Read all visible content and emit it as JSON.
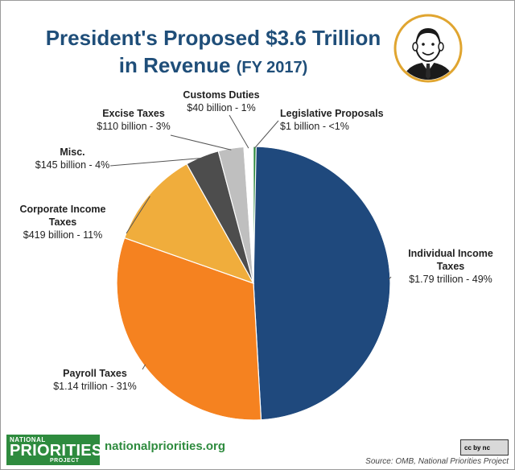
{
  "header": {
    "title_line1": "President's Proposed $3.6 Trillion",
    "title_line2": "in Revenue",
    "title_suffix": "(FY 2017)"
  },
  "chart_data": {
    "type": "pie",
    "title": "President's Proposed $3.6 Trillion in Revenue (FY 2017)",
    "slices": [
      {
        "label": "Individual Income Taxes",
        "value_text": "$1.79 trillion - 49%",
        "value_billion": 1790,
        "percent": 49,
        "color": "#1f497d"
      },
      {
        "label": "Payroll Taxes",
        "value_text": "$1.14 trillion - 31%",
        "value_billion": 1140,
        "percent": 31,
        "color": "#f58220"
      },
      {
        "label": "Corporate Income Taxes",
        "value_text": "$419 billion - 11%",
        "value_billion": 419,
        "percent": 11,
        "color": "#f0ad3c"
      },
      {
        "label": "Misc.",
        "value_text": "$145 billion - 4%",
        "value_billion": 145,
        "percent": 4,
        "color": "#4d4d4d"
      },
      {
        "label": "Excise Taxes",
        "value_text": "$110 billion - 3%",
        "value_billion": 110,
        "percent": 3,
        "color": "#bfbfbf"
      },
      {
        "label": "Customs Duties",
        "value_text": "$40 billion - 1%",
        "value_billion": 40,
        "percent": 1,
        "color": "#ffffff"
      },
      {
        "label": "Legislative Proposals",
        "value_text": "$1 billion - <1%",
        "value_billion": 1,
        "percent": 0,
        "color": "#2e8b3e"
      }
    ]
  },
  "footer": {
    "logo_top": "NATIONAL",
    "logo_mid": "PRIORITIES",
    "logo_bot": "PROJECT",
    "url": "nationalpriorities.org",
    "license_badge": "cc by nc",
    "source": "Source: OMB, National Priorities Project"
  },
  "colors": {
    "title": "#1f4e79",
    "brand_green": "#2e8b3e",
    "portrait_ring": "#e0a530"
  }
}
